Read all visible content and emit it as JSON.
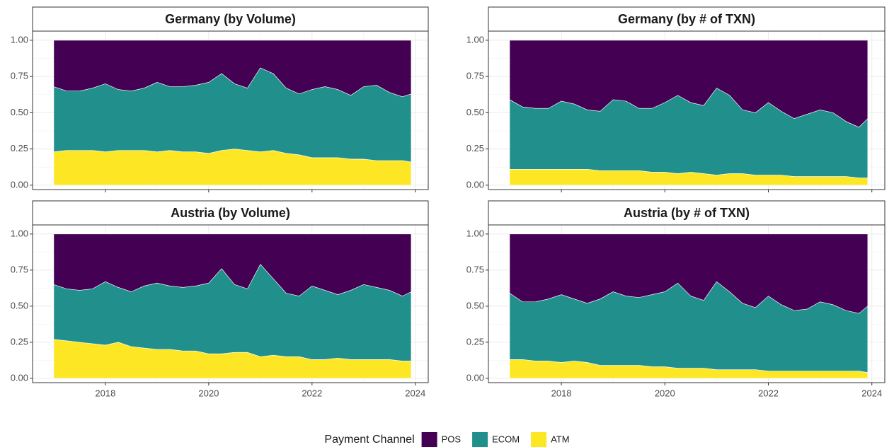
{
  "legend": {
    "title": "Payment Channel",
    "position": "bottom"
  },
  "chart_data": [
    {
      "type": "area",
      "title": "Germany (by Volume)",
      "x": [
        2017,
        2017.25,
        2017.5,
        2017.75,
        2018,
        2018.25,
        2018.5,
        2018.75,
        2019,
        2019.25,
        2019.5,
        2019.75,
        2020,
        2020.25,
        2020.5,
        2020.75,
        2021,
        2021.25,
        2021.5,
        2021.75,
        2022,
        2022.25,
        2022.5,
        2022.75,
        2023,
        2023.25,
        2023.5,
        2023.75,
        2023.92
      ],
      "series": [
        {
          "name": "POS",
          "color": "#440154",
          "values": [
            0.32,
            0.35,
            0.35,
            0.33,
            0.3,
            0.34,
            0.35,
            0.33,
            0.29,
            0.32,
            0.32,
            0.31,
            0.29,
            0.23,
            0.3,
            0.33,
            0.19,
            0.23,
            0.33,
            0.37,
            0.34,
            0.32,
            0.34,
            0.38,
            0.32,
            0.31,
            0.36,
            0.39,
            0.37
          ]
        },
        {
          "name": "ECOM",
          "color": "#21908C",
          "values": [
            0.45,
            0.41,
            0.41,
            0.43,
            0.47,
            0.42,
            0.41,
            0.43,
            0.48,
            0.44,
            0.45,
            0.46,
            0.49,
            0.53,
            0.45,
            0.43,
            0.58,
            0.53,
            0.45,
            0.42,
            0.47,
            0.49,
            0.47,
            0.44,
            0.5,
            0.52,
            0.47,
            0.44,
            0.47
          ]
        },
        {
          "name": "ATM",
          "color": "#FDE725",
          "values": [
            0.23,
            0.24,
            0.24,
            0.24,
            0.23,
            0.24,
            0.24,
            0.24,
            0.23,
            0.24,
            0.23,
            0.23,
            0.22,
            0.24,
            0.25,
            0.24,
            0.23,
            0.24,
            0.22,
            0.21,
            0.19,
            0.19,
            0.19,
            0.18,
            0.18,
            0.17,
            0.17,
            0.17,
            0.16
          ]
        }
      ],
      "xlim": [
        2016.59,
        2024.25
      ],
      "xticks": [
        2018,
        2020,
        2022,
        2024
      ],
      "ylim": [
        -0.03,
        1.063
      ],
      "yticks": [
        {
          "value": 0,
          "label": "0.00"
        },
        {
          "value": 0.25,
          "label": "0.25"
        },
        {
          "value": 0.5,
          "label": "0.50"
        },
        {
          "value": 0.75,
          "label": "0.75"
        },
        {
          "value": 1,
          "label": "1.00"
        }
      ],
      "grid": true
    },
    {
      "type": "area",
      "title": "Germany (by # of TXN)",
      "x": [
        2017,
        2017.25,
        2017.5,
        2017.75,
        2018,
        2018.25,
        2018.5,
        2018.75,
        2019,
        2019.25,
        2019.5,
        2019.75,
        2020,
        2020.25,
        2020.5,
        2020.75,
        2021,
        2021.25,
        2021.5,
        2021.75,
        2022,
        2022.25,
        2022.5,
        2022.75,
        2023,
        2023.25,
        2023.5,
        2023.75,
        2023.92
      ],
      "series": [
        {
          "values": [
            0.41,
            0.46,
            0.47,
            0.47,
            0.42,
            0.44,
            0.48,
            0.49,
            0.41,
            0.42,
            0.47,
            0.47,
            0.43,
            0.38,
            0.43,
            0.45,
            0.33,
            0.38,
            0.48,
            0.5,
            0.43,
            0.49,
            0.54,
            0.51,
            0.48,
            0.5,
            0.56,
            0.6,
            0.54
          ]
        },
        {
          "values": [
            0.48,
            0.43,
            0.42,
            0.42,
            0.47,
            0.45,
            0.41,
            0.41,
            0.49,
            0.48,
            0.43,
            0.44,
            0.48,
            0.54,
            0.48,
            0.47,
            0.6,
            0.54,
            0.44,
            0.43,
            0.5,
            0.44,
            0.4,
            0.43,
            0.46,
            0.44,
            0.38,
            0.35,
            0.41
          ]
        },
        {
          "values": [
            0.11,
            0.11,
            0.11,
            0.11,
            0.11,
            0.11,
            0.11,
            0.1,
            0.1,
            0.1,
            0.1,
            0.09,
            0.09,
            0.08,
            0.09,
            0.08,
            0.07,
            0.08,
            0.08,
            0.07,
            0.07,
            0.07,
            0.06,
            0.06,
            0.06,
            0.06,
            0.06,
            0.05,
            0.05
          ]
        }
      ],
      "xlim": [
        2016.59,
        2024.25
      ],
      "xticks": [
        2018,
        2020,
        2022,
        2024
      ],
      "ylim": [
        -0.03,
        1.063
      ],
      "yticks": [
        {
          "value": 0,
          "label": "0.00"
        },
        {
          "value": 0.25,
          "label": "0.25"
        },
        {
          "value": 0.5,
          "label": "0.50"
        },
        {
          "value": 0.75,
          "label": "0.75"
        },
        {
          "value": 1,
          "label": "1.00"
        }
      ],
      "grid": true
    },
    {
      "type": "area",
      "title": "Austria (by Volume)",
      "x": [
        2017,
        2017.25,
        2017.5,
        2017.75,
        2018,
        2018.25,
        2018.5,
        2018.75,
        2019,
        2019.25,
        2019.5,
        2019.75,
        2020,
        2020.25,
        2020.5,
        2020.75,
        2021,
        2021.25,
        2021.5,
        2021.75,
        2022,
        2022.25,
        2022.5,
        2022.75,
        2023,
        2023.25,
        2023.5,
        2023.75,
        2023.92
      ],
      "series": [
        {
          "values": [
            0.35,
            0.38,
            0.39,
            0.38,
            0.33,
            0.37,
            0.4,
            0.36,
            0.34,
            0.36,
            0.37,
            0.36,
            0.34,
            0.24,
            0.35,
            0.38,
            0.21,
            0.31,
            0.41,
            0.43,
            0.36,
            0.39,
            0.42,
            0.39,
            0.35,
            0.37,
            0.39,
            0.43,
            0.4
          ]
        },
        {
          "values": [
            0.38,
            0.36,
            0.36,
            0.38,
            0.44,
            0.38,
            0.38,
            0.43,
            0.46,
            0.44,
            0.44,
            0.45,
            0.49,
            0.59,
            0.47,
            0.44,
            0.64,
            0.53,
            0.44,
            0.42,
            0.51,
            0.48,
            0.44,
            0.48,
            0.52,
            0.5,
            0.48,
            0.45,
            0.48
          ]
        },
        {
          "values": [
            0.27,
            0.26,
            0.25,
            0.24,
            0.23,
            0.25,
            0.22,
            0.21,
            0.2,
            0.2,
            0.19,
            0.19,
            0.17,
            0.17,
            0.18,
            0.18,
            0.15,
            0.16,
            0.15,
            0.15,
            0.13,
            0.13,
            0.14,
            0.13,
            0.13,
            0.13,
            0.13,
            0.12,
            0.12
          ]
        }
      ],
      "xlim": [
        2016.59,
        2024.25
      ],
      "xticks": [
        2018,
        2020,
        2022,
        2024
      ],
      "ylim": [
        -0.03,
        1.063
      ],
      "yticks": [
        {
          "value": 0,
          "label": "0.00"
        },
        {
          "value": 0.25,
          "label": "0.25"
        },
        {
          "value": 0.5,
          "label": "0.50"
        },
        {
          "value": 0.75,
          "label": "0.75"
        },
        {
          "value": 1,
          "label": "1.00"
        }
      ],
      "grid": true
    },
    {
      "type": "area",
      "title": "Austria (by # of TXN)",
      "x": [
        2017,
        2017.25,
        2017.5,
        2017.75,
        2018,
        2018.25,
        2018.5,
        2018.75,
        2019,
        2019.25,
        2019.5,
        2019.75,
        2020,
        2020.25,
        2020.5,
        2020.75,
        2021,
        2021.25,
        2021.5,
        2021.75,
        2022,
        2022.25,
        2022.5,
        2022.75,
        2023,
        2023.25,
        2023.5,
        2023.75,
        2023.92
      ],
      "series": [
        {
          "values": [
            0.41,
            0.47,
            0.47,
            0.45,
            0.42,
            0.45,
            0.48,
            0.45,
            0.4,
            0.43,
            0.44,
            0.42,
            0.4,
            0.34,
            0.43,
            0.46,
            0.33,
            0.4,
            0.48,
            0.51,
            0.43,
            0.49,
            0.53,
            0.52,
            0.47,
            0.49,
            0.53,
            0.55,
            0.5
          ]
        },
        {
          "values": [
            0.46,
            0.4,
            0.41,
            0.43,
            0.47,
            0.43,
            0.41,
            0.46,
            0.51,
            0.48,
            0.47,
            0.5,
            0.52,
            0.59,
            0.5,
            0.47,
            0.61,
            0.54,
            0.46,
            0.43,
            0.52,
            0.46,
            0.42,
            0.43,
            0.48,
            0.46,
            0.42,
            0.4,
            0.46
          ]
        },
        {
          "values": [
            0.13,
            0.13,
            0.12,
            0.12,
            0.11,
            0.12,
            0.11,
            0.09,
            0.09,
            0.09,
            0.09,
            0.08,
            0.08,
            0.07,
            0.07,
            0.07,
            0.06,
            0.06,
            0.06,
            0.06,
            0.05,
            0.05,
            0.05,
            0.05,
            0.05,
            0.05,
            0.05,
            0.05,
            0.04
          ]
        }
      ],
      "xlim": [
        2016.59,
        2024.25
      ],
      "xticks": [
        2018,
        2020,
        2022,
        2024
      ],
      "ylim": [
        -0.03,
        1.063
      ],
      "yticks": [
        {
          "value": 0,
          "label": "0.00"
        },
        {
          "value": 0.25,
          "label": "0.25"
        },
        {
          "value": 0.5,
          "label": "0.50"
        },
        {
          "value": 0.75,
          "label": "0.75"
        },
        {
          "value": 1,
          "label": "1.00"
        }
      ],
      "grid": true
    }
  ]
}
